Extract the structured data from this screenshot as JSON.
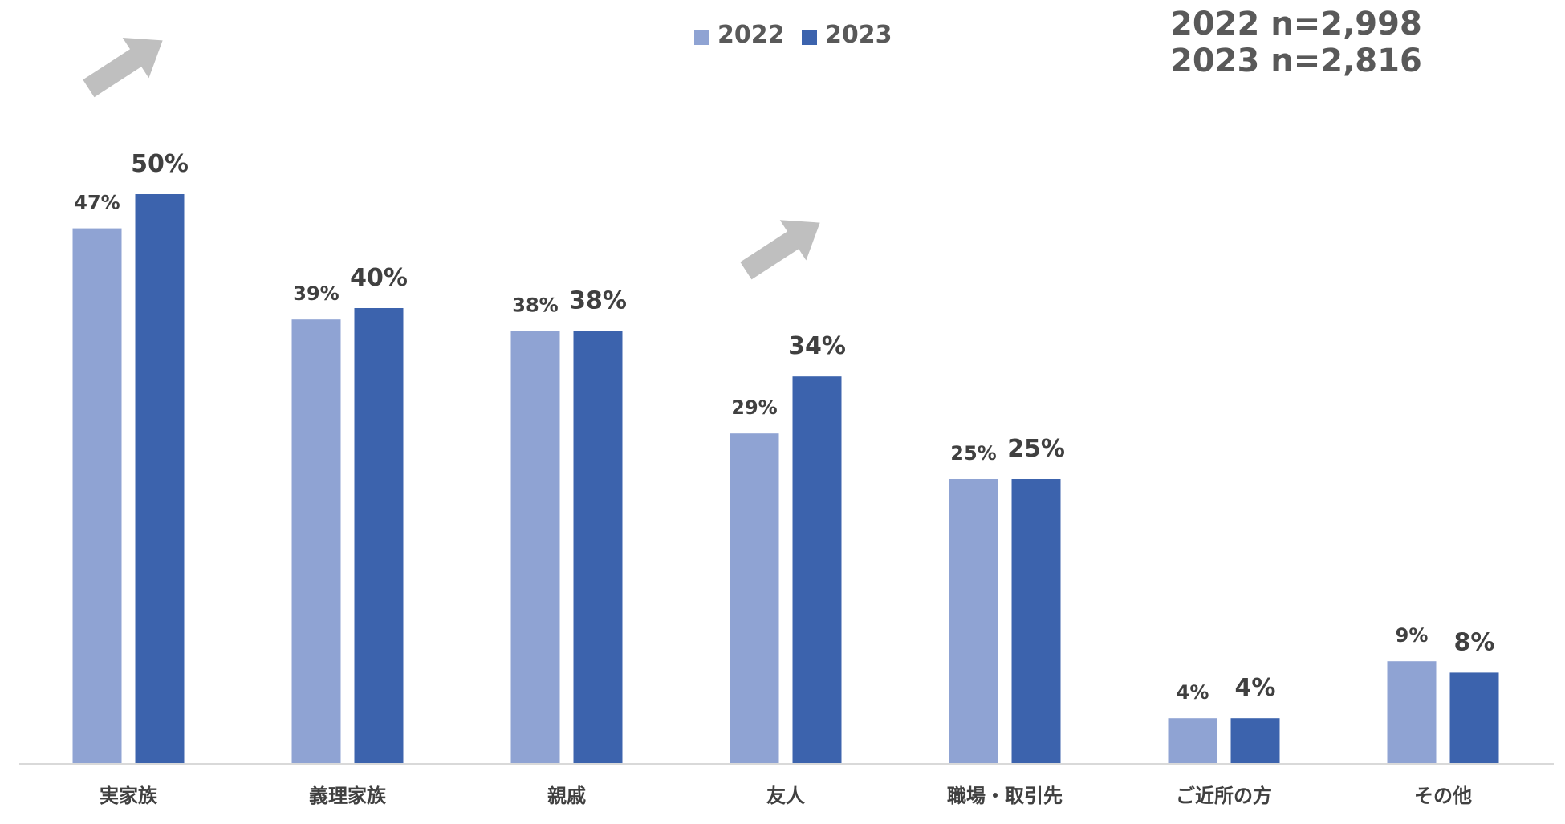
{
  "chart_data": {
    "type": "bar",
    "categories": [
      "実家族",
      "義理家族",
      "親戚",
      "友人",
      "職場・取引先",
      "ご近所の方",
      "その他"
    ],
    "series": [
      {
        "name": "2022",
        "values": [
          47,
          39,
          38,
          29,
          25,
          4,
          9
        ],
        "labels": [
          "47%",
          "39%",
          "38%",
          "29%",
          "25%",
          "4%",
          "9%"
        ]
      },
      {
        "name": "2023",
        "values": [
          50,
          40,
          38,
          34,
          25,
          4,
          8
        ],
        "labels": [
          "50%",
          "40%",
          "38%",
          "34%",
          "25%",
          "4%",
          "8%"
        ]
      }
    ],
    "ylim": [
      0,
      60
    ],
    "grid": false,
    "legend": "top-center",
    "sample_sizes": [
      "2022 n=2,998",
      "2023 n=2,816"
    ],
    "annotations": [
      {
        "type": "up-arrow",
        "category": "実家族"
      },
      {
        "type": "up-arrow",
        "category": "友人"
      }
    ]
  },
  "colors": {
    "series_2022": "#8fa3d3",
    "series_2023": "#3c63ad",
    "arrow": "#bfbfbf",
    "axis": "#d9d9d9"
  }
}
